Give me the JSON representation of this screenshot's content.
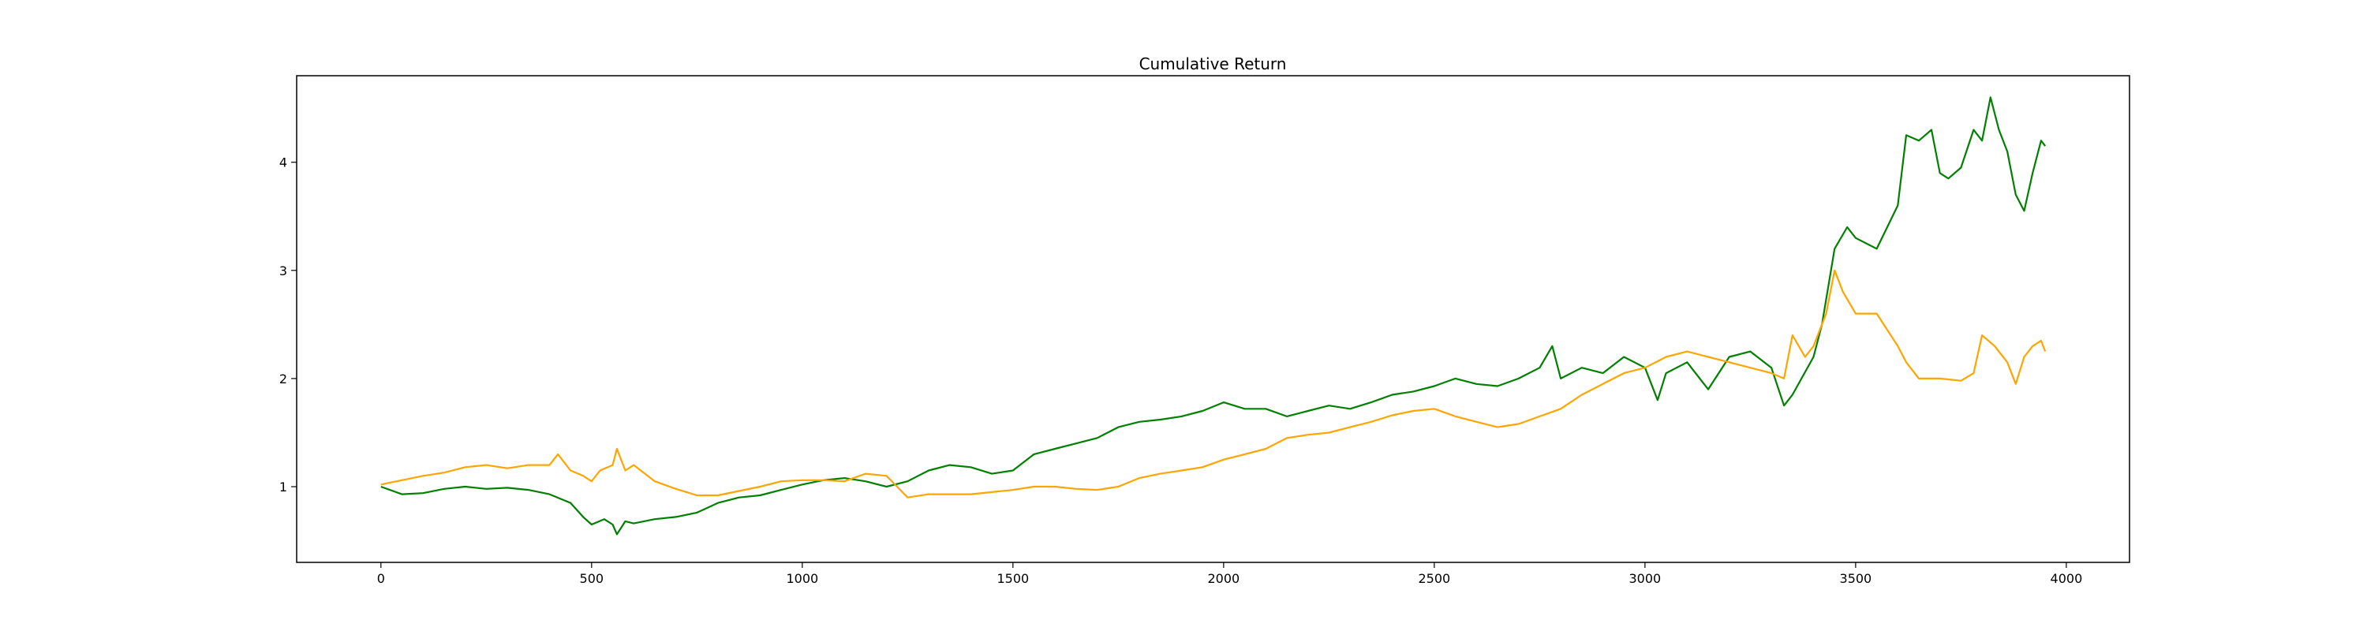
{
  "chart_data": {
    "type": "line",
    "title": "Cumulative Return",
    "xlabel": "",
    "ylabel": "",
    "xlim": [
      -200,
      4150
    ],
    "ylim": [
      0.3,
      4.8
    ],
    "xticks": [
      0,
      500,
      1000,
      1500,
      2000,
      2500,
      3000,
      3500,
      4000
    ],
    "xtick_labels": [
      "0",
      "500",
      "1000",
      "1500",
      "2000",
      "2500",
      "3000",
      "3500",
      "4000"
    ],
    "yticks": [
      1,
      2,
      3,
      4
    ],
    "ytick_labels": [
      "1",
      "2",
      "3",
      "4"
    ],
    "grid": false,
    "legend": "none",
    "series": [
      {
        "color": "#008000",
        "points": [
          [
            0,
            1.0
          ],
          [
            50,
            0.93
          ],
          [
            100,
            0.94
          ],
          [
            150,
            0.98
          ],
          [
            200,
            1.0
          ],
          [
            250,
            0.98
          ],
          [
            300,
            0.99
          ],
          [
            350,
            0.97
          ],
          [
            400,
            0.93
          ],
          [
            450,
            0.85
          ],
          [
            480,
            0.72
          ],
          [
            500,
            0.65
          ],
          [
            530,
            0.7
          ],
          [
            550,
            0.65
          ],
          [
            560,
            0.56
          ],
          [
            580,
            0.68
          ],
          [
            600,
            0.66
          ],
          [
            650,
            0.7
          ],
          [
            700,
            0.72
          ],
          [
            750,
            0.76
          ],
          [
            800,
            0.85
          ],
          [
            850,
            0.9
          ],
          [
            900,
            0.92
          ],
          [
            950,
            0.97
          ],
          [
            1000,
            1.02
          ],
          [
            1050,
            1.06
          ],
          [
            1100,
            1.08
          ],
          [
            1150,
            1.05
          ],
          [
            1200,
            1.0
          ],
          [
            1250,
            1.05
          ],
          [
            1300,
            1.15
          ],
          [
            1350,
            1.2
          ],
          [
            1400,
            1.18
          ],
          [
            1450,
            1.12
          ],
          [
            1500,
            1.15
          ],
          [
            1550,
            1.3
          ],
          [
            1600,
            1.35
          ],
          [
            1650,
            1.4
          ],
          [
            1700,
            1.45
          ],
          [
            1750,
            1.55
          ],
          [
            1800,
            1.6
          ],
          [
            1850,
            1.62
          ],
          [
            1900,
            1.65
          ],
          [
            1950,
            1.7
          ],
          [
            2000,
            1.78
          ],
          [
            2050,
            1.72
          ],
          [
            2100,
            1.72
          ],
          [
            2150,
            1.65
          ],
          [
            2200,
            1.7
          ],
          [
            2250,
            1.75
          ],
          [
            2300,
            1.72
          ],
          [
            2350,
            1.78
          ],
          [
            2400,
            1.85
          ],
          [
            2450,
            1.88
          ],
          [
            2500,
            1.93
          ],
          [
            2550,
            2.0
          ],
          [
            2600,
            1.95
          ],
          [
            2650,
            1.93
          ],
          [
            2700,
            2.0
          ],
          [
            2750,
            2.1
          ],
          [
            2780,
            2.3
          ],
          [
            2800,
            2.0
          ],
          [
            2850,
            2.1
          ],
          [
            2900,
            2.05
          ],
          [
            2950,
            2.2
          ],
          [
            3000,
            2.1
          ],
          [
            3030,
            1.8
          ],
          [
            3050,
            2.05
          ],
          [
            3100,
            2.15
          ],
          [
            3150,
            1.9
          ],
          [
            3200,
            2.2
          ],
          [
            3250,
            2.25
          ],
          [
            3300,
            2.1
          ],
          [
            3330,
            1.75
          ],
          [
            3350,
            1.85
          ],
          [
            3400,
            2.2
          ],
          [
            3420,
            2.5
          ],
          [
            3450,
            3.2
          ],
          [
            3480,
            3.4
          ],
          [
            3500,
            3.3
          ],
          [
            3550,
            3.2
          ],
          [
            3600,
            3.6
          ],
          [
            3620,
            4.25
          ],
          [
            3650,
            4.2
          ],
          [
            3680,
            4.3
          ],
          [
            3700,
            3.9
          ],
          [
            3720,
            3.85
          ],
          [
            3750,
            3.95
          ],
          [
            3780,
            4.3
          ],
          [
            3800,
            4.2
          ],
          [
            3820,
            4.6
          ],
          [
            3840,
            4.3
          ],
          [
            3860,
            4.1
          ],
          [
            3880,
            3.7
          ],
          [
            3900,
            3.55
          ],
          [
            3920,
            3.9
          ],
          [
            3940,
            4.2
          ],
          [
            3950,
            4.15
          ]
        ]
      },
      {
        "color": "#ffa500",
        "points": [
          [
            0,
            1.02
          ],
          [
            50,
            1.06
          ],
          [
            100,
            1.1
          ],
          [
            150,
            1.13
          ],
          [
            200,
            1.18
          ],
          [
            250,
            1.2
          ],
          [
            300,
            1.17
          ],
          [
            350,
            1.2
          ],
          [
            400,
            1.2
          ],
          [
            420,
            1.3
          ],
          [
            450,
            1.15
          ],
          [
            480,
            1.1
          ],
          [
            500,
            1.05
          ],
          [
            520,
            1.15
          ],
          [
            550,
            1.2
          ],
          [
            560,
            1.35
          ],
          [
            580,
            1.15
          ],
          [
            600,
            1.2
          ],
          [
            650,
            1.05
          ],
          [
            700,
            0.98
          ],
          [
            750,
            0.92
          ],
          [
            800,
            0.92
          ],
          [
            850,
            0.96
          ],
          [
            900,
            1.0
          ],
          [
            950,
            1.05
          ],
          [
            1000,
            1.06
          ],
          [
            1050,
            1.06
          ],
          [
            1100,
            1.05
          ],
          [
            1150,
            1.12
          ],
          [
            1200,
            1.1
          ],
          [
            1250,
            0.9
          ],
          [
            1300,
            0.93
          ],
          [
            1350,
            0.93
          ],
          [
            1400,
            0.93
          ],
          [
            1450,
            0.95
          ],
          [
            1500,
            0.97
          ],
          [
            1550,
            1.0
          ],
          [
            1600,
            1.0
          ],
          [
            1650,
            0.98
          ],
          [
            1700,
            0.97
          ],
          [
            1750,
            1.0
          ],
          [
            1800,
            1.08
          ],
          [
            1850,
            1.12
          ],
          [
            1900,
            1.15
          ],
          [
            1950,
            1.18
          ],
          [
            2000,
            1.25
          ],
          [
            2050,
            1.3
          ],
          [
            2100,
            1.35
          ],
          [
            2150,
            1.45
          ],
          [
            2200,
            1.48
          ],
          [
            2250,
            1.5
          ],
          [
            2300,
            1.55
          ],
          [
            2350,
            1.6
          ],
          [
            2400,
            1.66
          ],
          [
            2450,
            1.7
          ],
          [
            2500,
            1.72
          ],
          [
            2550,
            1.65
          ],
          [
            2600,
            1.6
          ],
          [
            2650,
            1.55
          ],
          [
            2700,
            1.58
          ],
          [
            2750,
            1.65
          ],
          [
            2800,
            1.72
          ],
          [
            2850,
            1.85
          ],
          [
            2900,
            1.95
          ],
          [
            2950,
            2.05
          ],
          [
            3000,
            2.1
          ],
          [
            3050,
            2.2
          ],
          [
            3100,
            2.25
          ],
          [
            3150,
            2.2
          ],
          [
            3200,
            2.15
          ],
          [
            3250,
            2.1
          ],
          [
            3300,
            2.05
          ],
          [
            3330,
            2.0
          ],
          [
            3350,
            2.4
          ],
          [
            3380,
            2.2
          ],
          [
            3400,
            2.3
          ],
          [
            3430,
            2.6
          ],
          [
            3450,
            3.0
          ],
          [
            3470,
            2.8
          ],
          [
            3500,
            2.6
          ],
          [
            3550,
            2.6
          ],
          [
            3600,
            2.3
          ],
          [
            3620,
            2.15
          ],
          [
            3650,
            2.0
          ],
          [
            3700,
            2.0
          ],
          [
            3750,
            1.98
          ],
          [
            3780,
            2.05
          ],
          [
            3800,
            2.4
          ],
          [
            3830,
            2.3
          ],
          [
            3860,
            2.15
          ],
          [
            3880,
            1.95
          ],
          [
            3900,
            2.2
          ],
          [
            3920,
            2.3
          ],
          [
            3940,
            2.35
          ],
          [
            3950,
            2.25
          ]
        ]
      }
    ]
  }
}
